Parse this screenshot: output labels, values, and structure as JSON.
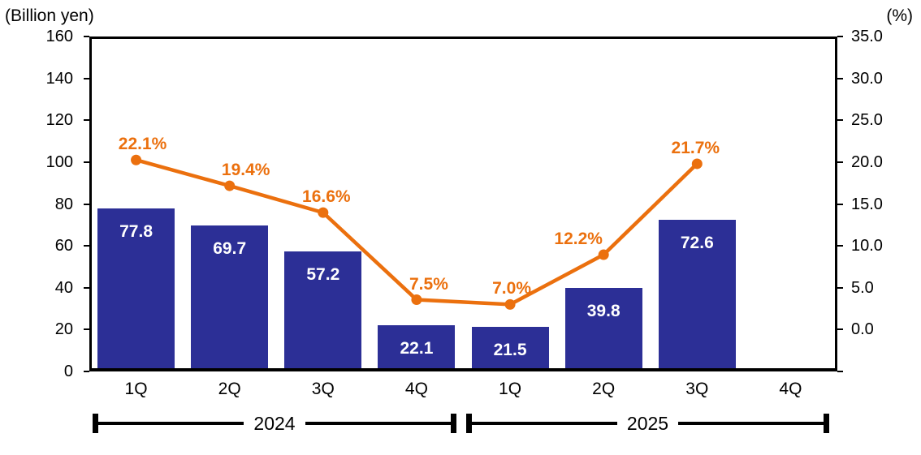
{
  "chart_data": {
    "type": "bar+line combo",
    "left_axis": {
      "title": "(Billion yen)",
      "min": 0,
      "max": 160,
      "tick_step": 20,
      "tick_labels": [
        "160",
        "140",
        "120",
        "100",
        "80",
        "60",
        "40",
        "20",
        "0"
      ]
    },
    "right_axis": {
      "title": "(%)",
      "min": 0,
      "max": 35,
      "tick_step": 5,
      "tick_labels": [
        "35.0",
        "30.0",
        "25.0",
        "20.0",
        "15.0",
        "10.0",
        "5.0",
        "0.0"
      ]
    },
    "x_axis": {
      "categories": [
        "1Q",
        "2Q",
        "3Q",
        "4Q",
        "1Q",
        "2Q",
        "3Q",
        "4Q"
      ],
      "groups": [
        {
          "label": "2024",
          "start": 0,
          "end": 3
        },
        {
          "label": "2025",
          "start": 4,
          "end": 7
        }
      ]
    },
    "bar_series": {
      "axis": "left",
      "color": "#2C2F96",
      "label_color": "#FFFFFF",
      "values": [
        77.8,
        69.7,
        57.2,
        22.1,
        21.5,
        39.8,
        72.6,
        null
      ],
      "data_labels": [
        "77.8",
        "69.7",
        "57.2",
        "22.1",
        "21.5",
        "39.8",
        "72.6",
        null
      ]
    },
    "line_series": {
      "axis": "right",
      "color": "#EB700E",
      "values": [
        22.1,
        19.4,
        16.6,
        7.5,
        7.0,
        12.2,
        21.7,
        null
      ],
      "data_labels": [
        "22.1%",
        "19.4%",
        "16.6%",
        "7.5%",
        "7.0%",
        "12.2%",
        "21.7%",
        null
      ]
    },
    "gridlines": {
      "visible": true,
      "color": "#D9D9D9"
    }
  }
}
